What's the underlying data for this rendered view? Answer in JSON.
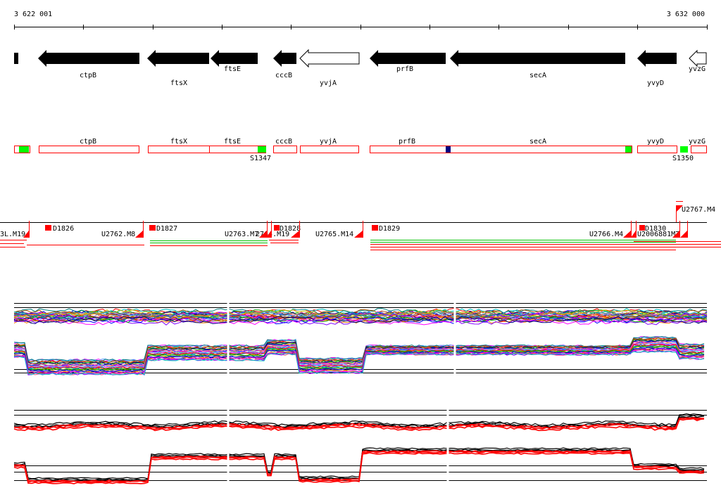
{
  "coordinates": {
    "start_label": "3 622 001",
    "end_label": "3 632 000"
  },
  "genes": [
    {
      "name": "ctpB",
      "strand": "-",
      "filled": true
    },
    {
      "name": "ftsX",
      "strand": "-",
      "filled": true
    },
    {
      "name": "ftsE",
      "strand": "-",
      "filled": true
    },
    {
      "name": "cccB",
      "strand": "-",
      "filled": true
    },
    {
      "name": "yvjA",
      "strand": "-",
      "filled": false
    },
    {
      "name": "prfB",
      "strand": "-",
      "filled": true
    },
    {
      "name": "secA",
      "strand": "-",
      "filled": true
    },
    {
      "name": "yvyD",
      "strand": "-",
      "filled": true
    },
    {
      "name": "yvzG",
      "strand": "-",
      "filled": false
    }
  ],
  "gene_boxes": {
    "labels": [
      "ctpB",
      "ftsX",
      "ftsE",
      "cccB",
      "yvjA",
      "prfB",
      "secA",
      "yvyD",
      "yvzG"
    ],
    "site_labels": [
      "S1347",
      "S1350"
    ]
  },
  "features": {
    "d_labels": [
      "D1826",
      "D1827",
      "D1828",
      "D1829",
      "D1830"
    ],
    "u_labels": [
      "3L.M19",
      "U2762.M8",
      "U2763.M7",
      "2764.M19",
      "U2765.M14",
      "U2766.M4",
      "U2006881M7",
      "U2767.M4"
    ]
  },
  "colors": {
    "gene_fill": "#000000",
    "box_outline": "#ff0000",
    "site_green": "#00ff00",
    "site_blue": "#000080",
    "feature_red": "#ff0000",
    "overlay_green": "#00c000"
  }
}
